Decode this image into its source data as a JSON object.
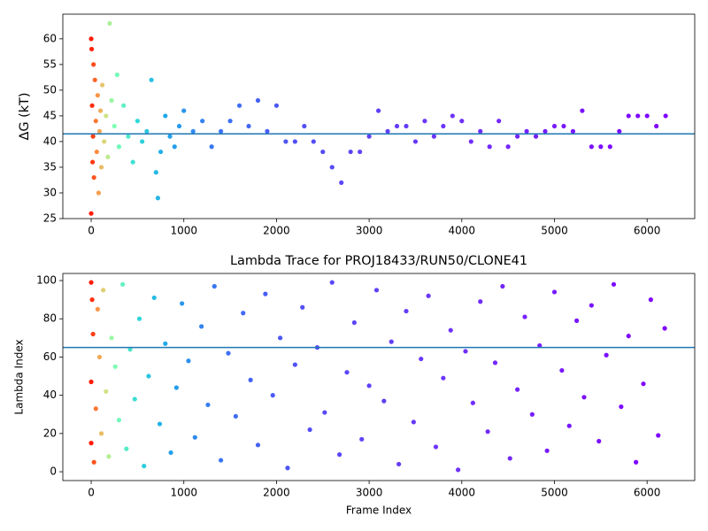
{
  "chart_data": [
    {
      "type": "scatter",
      "ylabel": "ΔG (kT)",
      "x": [
        0,
        0,
        5,
        10,
        15,
        20,
        25,
        30,
        40,
        50,
        60,
        70,
        80,
        90,
        100,
        110,
        120,
        140,
        160,
        180,
        200,
        220,
        250,
        280,
        300,
        350,
        400,
        450,
        500,
        550,
        600,
        650,
        700,
        720,
        750,
        800,
        850,
        900,
        950,
        1000,
        1100,
        1200,
        1300,
        1400,
        1500,
        1600,
        1700,
        1800,
        1900,
        2000,
        2100,
        2200,
        2300,
        2400,
        2500,
        2600,
        2700,
        2800,
        2900,
        3000,
        3100,
        3200,
        3300,
        3400,
        3500,
        3600,
        3700,
        3800,
        3900,
        4000,
        4100,
        4200,
        4300,
        4400,
        4500,
        4600,
        4700,
        4800,
        4900,
        5000,
        5100,
        5200,
        5300,
        5400,
        5500,
        5600,
        5700,
        5800,
        5900,
        6000,
        6100,
        6200
      ],
      "values": [
        26,
        60,
        58,
        47,
        36,
        41,
        55,
        33,
        52,
        44,
        38,
        49,
        30,
        42,
        46,
        35,
        51,
        40,
        45,
        37,
        63,
        48,
        43,
        53,
        39,
        47,
        41,
        36,
        44,
        40,
        42,
        52,
        34,
        29,
        38,
        45,
        41,
        39,
        43,
        46,
        42,
        44,
        39,
        42,
        44,
        47,
        43,
        48,
        42,
        47,
        40,
        40,
        43,
        40,
        38,
        35,
        32,
        38,
        38,
        41,
        46,
        42,
        43,
        43,
        40,
        44,
        41,
        43,
        45,
        44,
        40,
        42,
        39,
        44,
        39,
        41,
        42,
        41,
        42,
        43,
        43,
        42,
        46,
        39,
        39,
        39,
        42,
        45,
        45,
        45,
        43,
        45
      ],
      "hline": 41.5,
      "hline_color": "#1f77b4",
      "colormap": [
        {
          "x": 0,
          "color": "#ff1a00"
        },
        {
          "x": 60,
          "color": "#ff8c40"
        },
        {
          "x": 150,
          "color": "#d8e080"
        },
        {
          "x": 250,
          "color": "#80ffb4"
        },
        {
          "x": 500,
          "color": "#30d8d8"
        },
        {
          "x": 800,
          "color": "#20a8ea"
        },
        {
          "x": 1300,
          "color": "#3878f2"
        },
        {
          "x": 2200,
          "color": "#5050f6"
        },
        {
          "x": 4000,
          "color": "#7030fa"
        },
        {
          "x": 6200,
          "color": "#8000ff"
        }
      ],
      "xlim": [
        -306,
        6514
      ],
      "xticks": [
        0,
        1000,
        2000,
        3000,
        4000,
        5000,
        6000
      ],
      "ylim": [
        25,
        64.8
      ],
      "yticks": [
        25,
        30,
        35,
        40,
        45,
        50,
        55,
        60
      ]
    },
    {
      "type": "scatter",
      "title": "Lambda Trace for PROJ18433/RUN50/CLONE41",
      "xlabel": "Frame Index",
      "ylabel": "Lambda Index",
      "x": [
        0,
        0,
        0,
        10,
        20,
        30,
        50,
        70,
        90,
        110,
        130,
        160,
        190,
        220,
        260,
        300,
        340,
        380,
        420,
        470,
        520,
        570,
        620,
        680,
        740,
        800,
        860,
        920,
        980,
        1050,
        1120,
        1190,
        1260,
        1330,
        1400,
        1480,
        1560,
        1640,
        1720,
        1800,
        1880,
        1960,
        2040,
        2120,
        2200,
        2280,
        2360,
        2440,
        2520,
        2600,
        2680,
        2760,
        2840,
        2920,
        3000,
        3080,
        3160,
        3240,
        3320,
        3400,
        3480,
        3560,
        3640,
        3720,
        3800,
        3880,
        3960,
        4040,
        4120,
        4200,
        4280,
        4360,
        4440,
        4520,
        4600,
        4680,
        4760,
        4840,
        4920,
        5000,
        5080,
        5160,
        5240,
        5320,
        5400,
        5480,
        5560,
        5640,
        5720,
        5800,
        5880,
        5960,
        6040,
        6120,
        6190
      ],
      "values": [
        99,
        15,
        47,
        90,
        72,
        5,
        33,
        85,
        60,
        20,
        95,
        42,
        8,
        70,
        55,
        27,
        98,
        12,
        64,
        38,
        80,
        3,
        50,
        91,
        25,
        67,
        10,
        44,
        88,
        58,
        18,
        76,
        35,
        97,
        6,
        62,
        29,
        83,
        48,
        14,
        93,
        40,
        70,
        2,
        56,
        86,
        22,
        65,
        31,
        99,
        9,
        52,
        78,
        17,
        45,
        95,
        37,
        68,
        4,
        84,
        26,
        59,
        92,
        13,
        49,
        74,
        1,
        63,
        36,
        89,
        21,
        57,
        97,
        7,
        43,
        81,
        30,
        66,
        11,
        94,
        53,
        24,
        79,
        39,
        87,
        16,
        61,
        98,
        34,
        71,
        5,
        46,
        90,
        19,
        75
      ],
      "hline": 65,
      "hline_color": "#1f77b4",
      "colormap": [
        {
          "x": 0,
          "color": "#ff1a00"
        },
        {
          "x": 60,
          "color": "#ff8c40"
        },
        {
          "x": 150,
          "color": "#d8e080"
        },
        {
          "x": 250,
          "color": "#80ffb4"
        },
        {
          "x": 500,
          "color": "#30d8d8"
        },
        {
          "x": 800,
          "color": "#20a8ea"
        },
        {
          "x": 1300,
          "color": "#3878f2"
        },
        {
          "x": 2200,
          "color": "#5050f6"
        },
        {
          "x": 4000,
          "color": "#7030fa"
        },
        {
          "x": 6200,
          "color": "#8000ff"
        }
      ],
      "xlim": [
        -306,
        6514
      ],
      "xticks": [
        0,
        1000,
        2000,
        3000,
        4000,
        5000,
        6000
      ],
      "ylim": [
        -4.6,
        103.7
      ],
      "yticks": [
        0,
        20,
        40,
        60,
        80,
        100
      ]
    }
  ]
}
